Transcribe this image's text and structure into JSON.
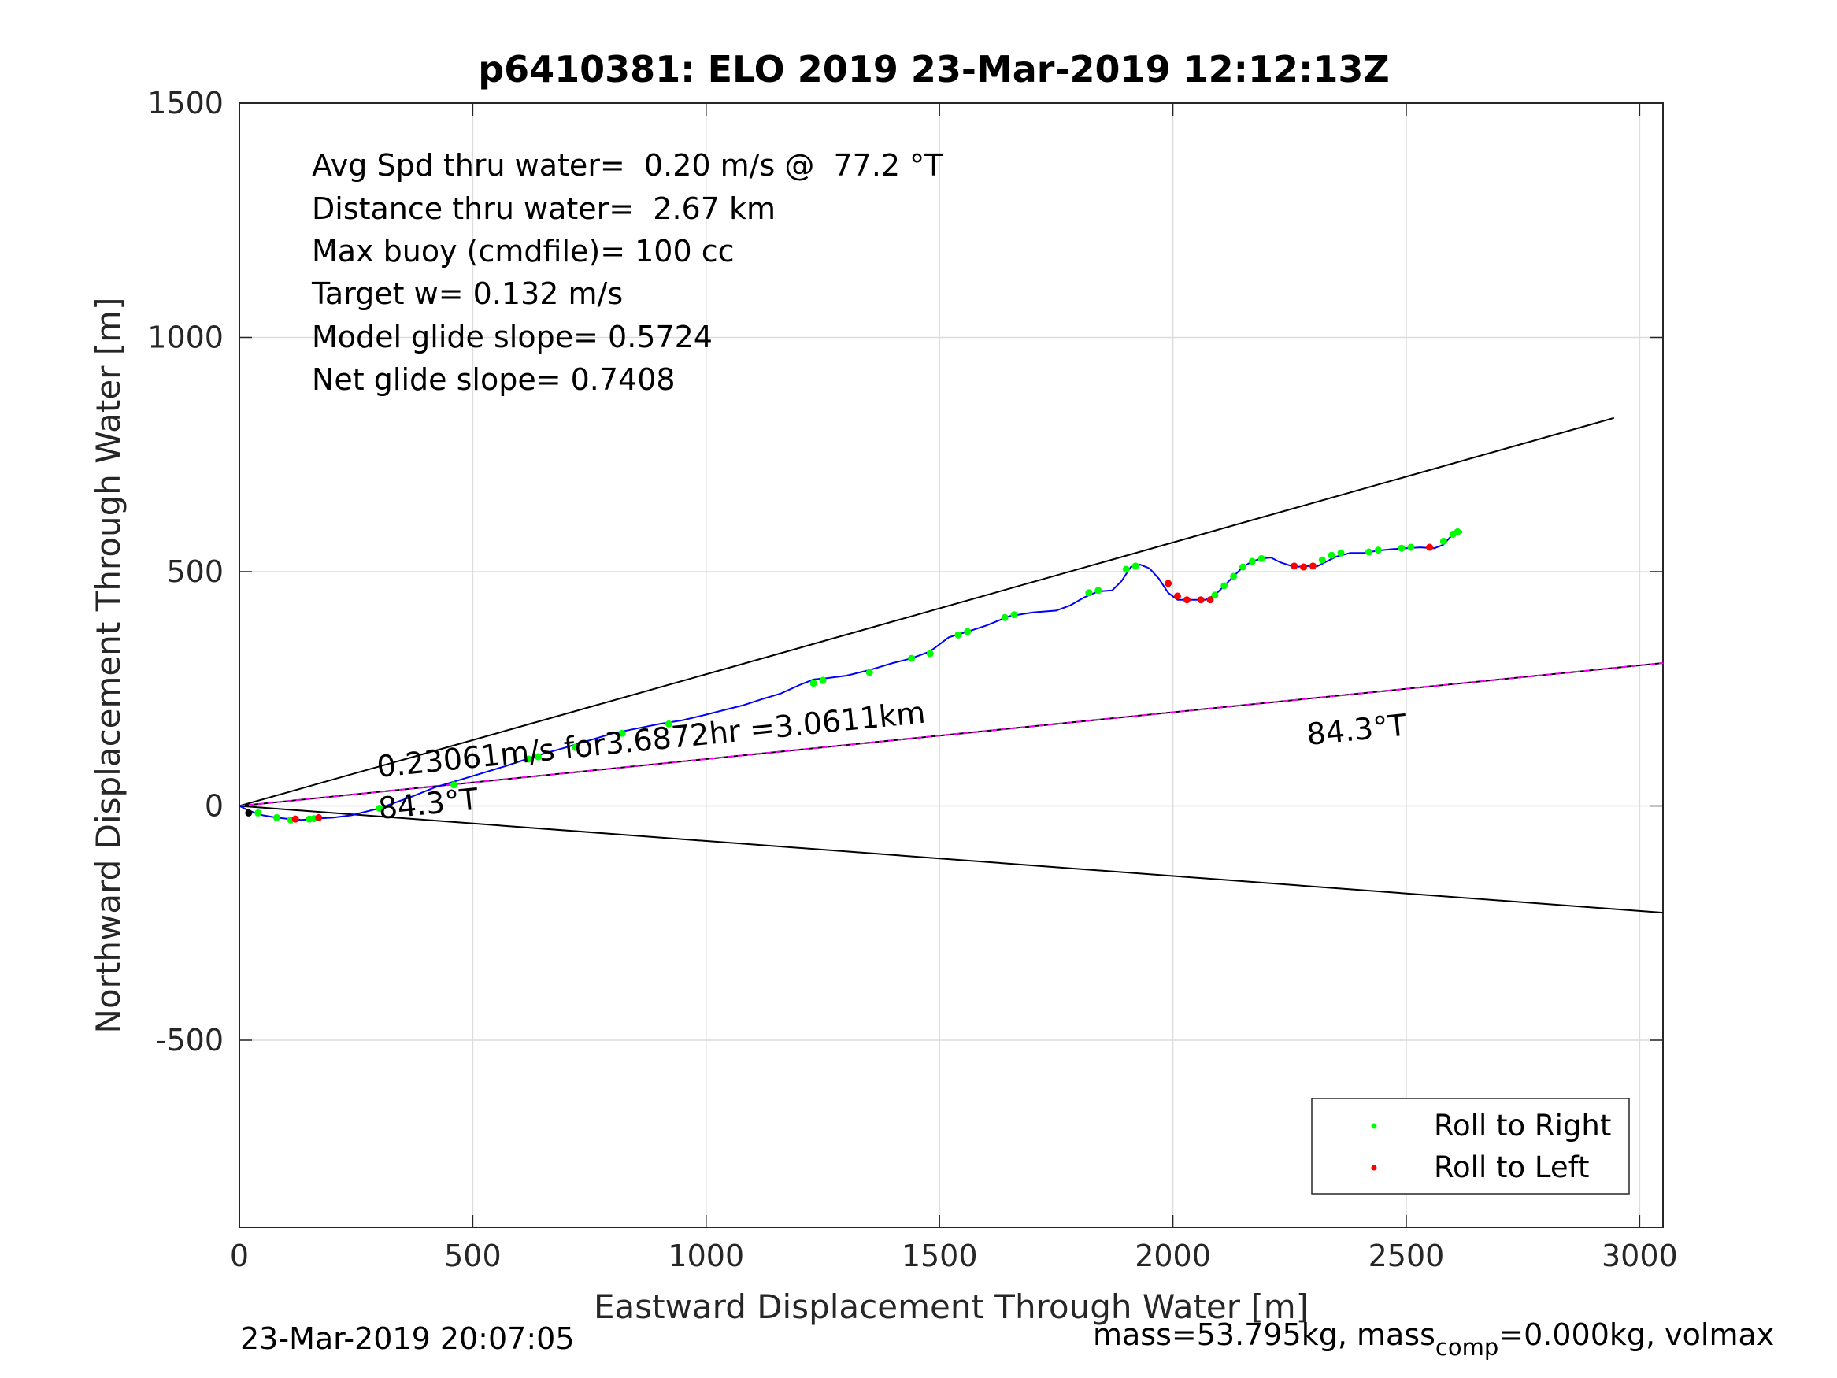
{
  "chart_data": {
    "type": "line",
    "title": "p6410381: ELO 2019 23-Mar-2019 12:12:13Z",
    "xlabel": "Eastward Displacement Through Water [m]",
    "ylabel": "Northward Displacement Through Water [m]",
    "xlim": [
      0,
      3050
    ],
    "ylim": [
      -900,
      1500
    ],
    "xticks": [
      "0",
      "500",
      "1000",
      "1500",
      "2000",
      "2500",
      "3000"
    ],
    "yticks": [
      "-500",
      "0",
      "500",
      "1000",
      "1500"
    ],
    "grid": true,
    "info_lines": [
      "Avg Spd thru water=  0.20 m/s @  77.2 °T",
      "Distance thru water=  2.67 km",
      "Max buoy (cmdfile)= 100 cc",
      "Target w= 0.132 m/s",
      "Model glide slope= 0.5724",
      "Net glide slope= 0.7408"
    ],
    "annotations": {
      "speed_text": "0.23061m/s for3.6872hr =3.0611km",
      "heading_label_near": "84.3°T",
      "heading_label_far": "84.3°T"
    },
    "reference_lines": [
      {
        "kind": "upper-bound",
        "from": [
          0,
          0
        ],
        "to": [
          2945,
          828
        ],
        "color": "#000000"
      },
      {
        "kind": "heading-84.3",
        "from": [
          0,
          0
        ],
        "to": [
          3050,
          305
        ],
        "color": "#000000",
        "overlay_color": "#ff00ff"
      },
      {
        "kind": "lower-bound",
        "from": [
          0,
          0
        ],
        "to": [
          3050,
          -228
        ],
        "color": "#000000"
      }
    ],
    "track": {
      "color": "#0000ff",
      "x": [
        0,
        20,
        50,
        80,
        110,
        135,
        160,
        200,
        240,
        300,
        370,
        420,
        470,
        520,
        570,
        600,
        640,
        700,
        750,
        800,
        850,
        900,
        950,
        1000,
        1040,
        1080,
        1120,
        1160,
        1200,
        1230,
        1260,
        1300,
        1350,
        1400,
        1440,
        1480,
        1520,
        1560,
        1600,
        1650,
        1700,
        1750,
        1780,
        1810,
        1840,
        1870,
        1890,
        1910,
        1930,
        1950,
        1970,
        1990,
        2010,
        2040,
        2070,
        2090,
        2110,
        2130,
        2150,
        2170,
        2190,
        2210,
        2230,
        2260,
        2290,
        2310,
        2330,
        2350,
        2380,
        2410,
        2440,
        2470,
        2500,
        2530,
        2560,
        2580,
        2600,
        2620
      ],
      "y": [
        0,
        -10,
        -20,
        -25,
        -28,
        -30,
        -27,
        -25,
        -20,
        -5,
        20,
        40,
        55,
        70,
        85,
        95,
        108,
        125,
        140,
        155,
        165,
        175,
        183,
        195,
        205,
        215,
        228,
        240,
        258,
        270,
        273,
        278,
        290,
        305,
        315,
        330,
        360,
        372,
        385,
        405,
        413,
        417,
        428,
        445,
        458,
        460,
        480,
        510,
        515,
        507,
        485,
        455,
        440,
        440,
        440,
        450,
        470,
        490,
        510,
        522,
        528,
        530,
        520,
        510,
        512,
        512,
        522,
        532,
        540,
        540,
        545,
        548,
        550,
        552,
        550,
        558,
        580,
        585
      ]
    },
    "series": [
      {
        "name": "Roll to Right",
        "color": "#00ff00",
        "points": [
          [
            40,
            -15
          ],
          [
            80,
            -25
          ],
          [
            110,
            -30
          ],
          [
            150,
            -28
          ],
          [
            160,
            -27
          ],
          [
            300,
            -5
          ],
          [
            460,
            45
          ],
          [
            620,
            100
          ],
          [
            640,
            105
          ],
          [
            720,
            125
          ],
          [
            820,
            155
          ],
          [
            920,
            175
          ],
          [
            1230,
            262
          ],
          [
            1250,
            268
          ],
          [
            1350,
            285
          ],
          [
            1440,
            315
          ],
          [
            1480,
            325
          ],
          [
            1540,
            365
          ],
          [
            1560,
            372
          ],
          [
            1640,
            402
          ],
          [
            1660,
            408
          ],
          [
            1820,
            455
          ],
          [
            1840,
            460
          ],
          [
            1900,
            505
          ],
          [
            1920,
            512
          ],
          [
            2090,
            450
          ],
          [
            2110,
            470
          ],
          [
            2130,
            490
          ],
          [
            2150,
            510
          ],
          [
            2170,
            522
          ],
          [
            2190,
            528
          ],
          [
            2320,
            525
          ],
          [
            2340,
            535
          ],
          [
            2360,
            540
          ],
          [
            2420,
            542
          ],
          [
            2440,
            546
          ],
          [
            2490,
            550
          ],
          [
            2510,
            552
          ],
          [
            2580,
            565
          ],
          [
            2600,
            580
          ],
          [
            2610,
            585
          ]
        ]
      },
      {
        "name": "Roll to Left",
        "color": "#ff0000",
        "points": [
          [
            120,
            -28
          ],
          [
            170,
            -25
          ],
          [
            1990,
            475
          ],
          [
            2010,
            448
          ],
          [
            2030,
            440
          ],
          [
            2060,
            440
          ],
          [
            2080,
            440
          ],
          [
            2260,
            512
          ],
          [
            2280,
            510
          ],
          [
            2300,
            512
          ],
          [
            2550,
            552
          ]
        ]
      }
    ],
    "legend": {
      "position": "bottom-right",
      "entries": [
        "Roll to Right",
        "Roll to Left"
      ]
    }
  },
  "footer": {
    "timestamp": "23-Mar-2019 20:07:05",
    "mass_prefix": "mass=53.795kg, mass",
    "mass_sub": "comp",
    "mass_suffix": "=0.000kg, volmax"
  }
}
